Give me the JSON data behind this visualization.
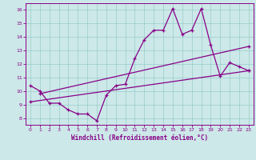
{
  "xlabel": "Windchill (Refroidissement éolien,°C)",
  "bg_color": "#cce8e8",
  "grid_color": "#99cccc",
  "line_color": "#880088",
  "spine_color": "#880088",
  "xlim": [
    -0.5,
    23.5
  ],
  "ylim": [
    7.5,
    16.5
  ],
  "xticks": [
    0,
    1,
    2,
    3,
    4,
    5,
    6,
    7,
    8,
    9,
    10,
    11,
    12,
    13,
    14,
    15,
    16,
    17,
    18,
    19,
    20,
    21,
    22,
    23
  ],
  "yticks": [
    8,
    9,
    10,
    11,
    12,
    13,
    14,
    15,
    16
  ],
  "curve1_x": [
    0,
    1,
    2,
    3,
    4,
    5,
    6,
    7,
    8,
    9,
    10,
    11,
    12,
    13,
    14,
    15,
    16,
    17,
    18,
    19,
    20,
    21,
    22,
    23
  ],
  "curve1_y": [
    10.4,
    10.0,
    9.1,
    9.1,
    8.6,
    8.3,
    8.3,
    7.8,
    9.7,
    10.4,
    10.5,
    12.4,
    13.8,
    14.5,
    14.5,
    16.1,
    14.2,
    14.5,
    16.1,
    13.4,
    11.1,
    12.1,
    11.8,
    11.5
  ],
  "line1_x": [
    0,
    23
  ],
  "line1_y": [
    9.2,
    11.5
  ],
  "line2_x": [
    1,
    23
  ],
  "line2_y": [
    9.8,
    13.3
  ]
}
